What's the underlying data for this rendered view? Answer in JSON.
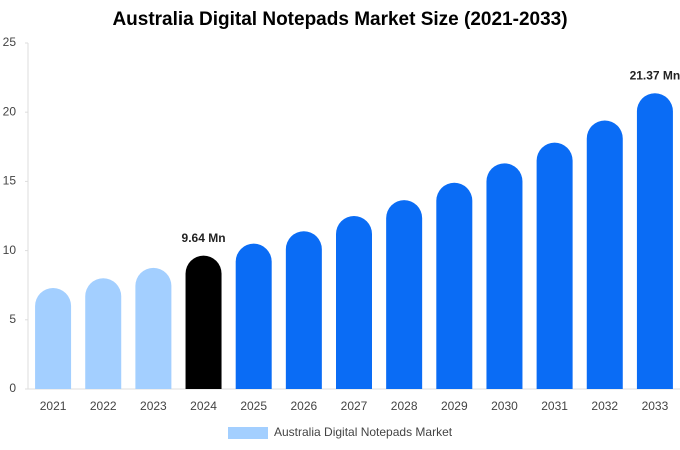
{
  "chart_data": {
    "type": "bar",
    "title": "Australia Digital Notepads Market Size (2021-2033)",
    "categories": [
      "2021",
      "2022",
      "2023",
      "2024",
      "2025",
      "2026",
      "2027",
      "2028",
      "2029",
      "2030",
      "2031",
      "2032",
      "2033"
    ],
    "series": [
      {
        "name": "Australia Digital Notepads Market",
        "color": "#a3cfff",
        "colors": [
          "#a3cfff",
          "#a3cfff",
          "#a3cfff",
          "#000000",
          "#0a6cf5",
          "#0a6cf5",
          "#0a6cf5",
          "#0a6cf5",
          "#0a6cf5",
          "#0a6cf5",
          "#0a6cf5",
          "#0a6cf5",
          "#0a6cf5"
        ],
        "values": [
          7.3,
          8.0,
          8.75,
          9.64,
          10.5,
          11.4,
          12.5,
          13.65,
          14.9,
          16.3,
          17.8,
          19.4,
          21.37
        ],
        "value_labels": [
          null,
          null,
          null,
          "9.64 Mn",
          null,
          null,
          null,
          null,
          null,
          null,
          null,
          null,
          "21.37 Mn"
        ]
      }
    ],
    "ylim": [
      0,
      25
    ],
    "yticks": [
      0,
      5,
      10,
      15,
      20,
      25
    ],
    "legend": "bottom"
  }
}
